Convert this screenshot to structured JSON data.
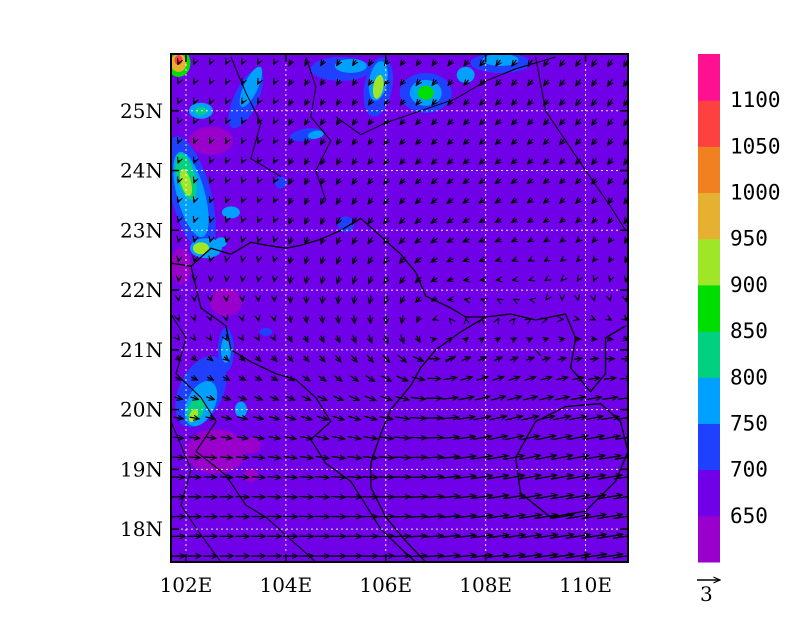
{
  "chart_data": {
    "type": "map",
    "x": {
      "label": "",
      "ticks": [
        102,
        104,
        106,
        108,
        110
      ],
      "tick_labels": [
        "102E",
        "104E",
        "106E",
        "108E",
        "110E"
      ],
      "range": [
        101.7,
        110.85
      ]
    },
    "y": {
      "label": "",
      "ticks": [
        18,
        19,
        20,
        21,
        22,
        23,
        24,
        25
      ],
      "tick_labels": [
        "18N",
        "19N",
        "20N",
        "21N",
        "22N",
        "23N",
        "24N",
        "25N"
      ],
      "range": [
        17.45,
        25.95
      ]
    },
    "grid": true,
    "filled_contours": {
      "levels": [
        650,
        700,
        750,
        800,
        850,
        900,
        950,
        1000,
        1050,
        1100
      ],
      "colors": [
        "#9900cc",
        "#7000e8",
        "#2040ff",
        "#00a0ff",
        "#00d080",
        "#00dd00",
        "#a0e628",
        "#e6b030",
        "#f08020",
        "#ff4040",
        "#ff1090"
      ],
      "background_color": "#7000e8",
      "high_areas": [
        {
          "region": "west-edge 24N–22.5N",
          "level": "900-950"
        },
        {
          "region": "102E 20N",
          "level": "900"
        },
        {
          "region": "101.8E 25.8N",
          "level": "1050"
        },
        {
          "region": "105.8E 25.5N",
          "level": "900"
        },
        {
          "region": "106.8E 25.3N",
          "level": "850"
        }
      ]
    },
    "vectors": {
      "reference_label": "3",
      "pattern": "cyclonic circulation centered near 106.5E 21.5N; northeasterly flow in north, strong westerly flow in south"
    },
    "colorbar": {
      "labels": [
        "650",
        "700",
        "750",
        "800",
        "850",
        "900",
        "950",
        "1000",
        "1050",
        "1100"
      ]
    }
  }
}
